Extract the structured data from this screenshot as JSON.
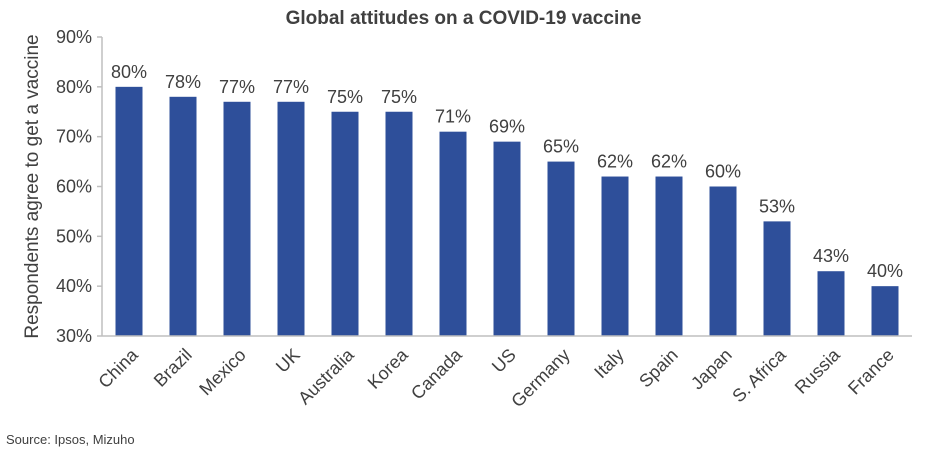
{
  "chart_data": {
    "type": "bar",
    "title": "Global attitudes on a COVID-19 vaccine",
    "xlabel": "",
    "ylabel": "Respondents agree to get a vaccine",
    "categories": [
      "China",
      "Brazil",
      "Mexico",
      "UK",
      "Australia",
      "Korea",
      "Canada",
      "US",
      "Germany",
      "Italy",
      "Spain",
      "Japan",
      "S. Africa",
      "Russia",
      "France"
    ],
    "values": [
      80,
      78,
      77,
      77,
      75,
      75,
      71,
      69,
      65,
      62,
      62,
      60,
      53,
      43,
      40
    ],
    "data_labels": [
      "80%",
      "78%",
      "77%",
      "77%",
      "75%",
      "75%",
      "71%",
      "69%",
      "65%",
      "62%",
      "62%",
      "60%",
      "53%",
      "43%",
      "40%"
    ],
    "ylim": [
      30,
      90
    ],
    "yticks": [
      30,
      40,
      50,
      60,
      70,
      80,
      90
    ],
    "ytick_labels": [
      "30%",
      "40%",
      "50%",
      "60%",
      "70%",
      "80%",
      "90%"
    ],
    "grid": false,
    "legend": "none",
    "bar_color": "#2e4f9a",
    "axis_color": "#bfbfbf",
    "text_color": "#404040"
  },
  "source": "Source: Ipsos, Mizuho"
}
